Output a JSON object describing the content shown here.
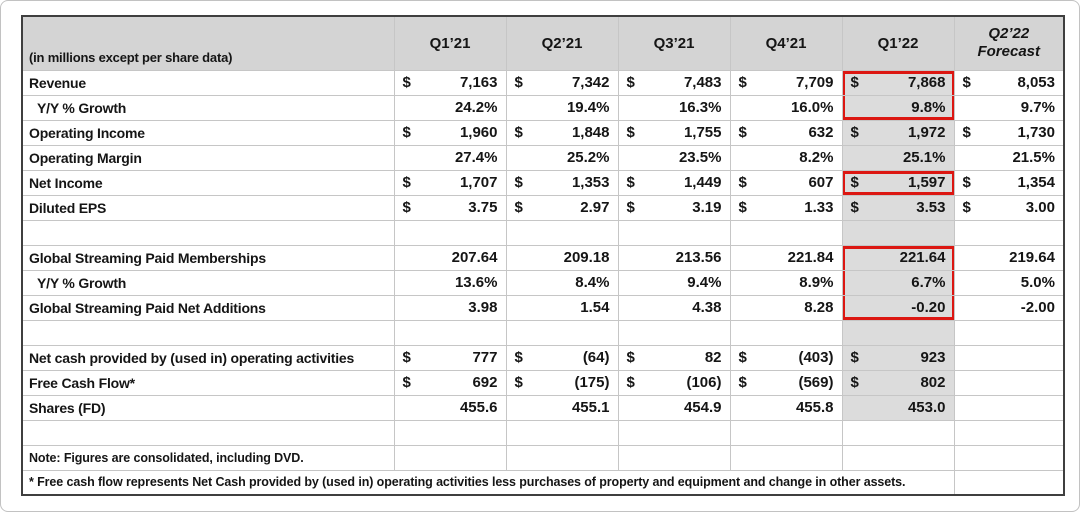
{
  "table": {
    "unit_note": "(in millions except per share data)",
    "columns": [
      "Q1’21",
      "Q2’21",
      "Q3’21",
      "Q4’21",
      "Q1’22"
    ],
    "forecast_header": {
      "line1": "Q2’22",
      "line2": "Forecast"
    },
    "highlight_column": "Q1'22",
    "colors": {
      "header_bg": "#d4d4d4",
      "column_shade": "#dcdcdc",
      "highlight_box": "#dc1712",
      "gridline": "#c6c6c6",
      "outer_border": "#3f3f3f"
    },
    "rows": [
      {
        "label": "Revenue",
        "dollar": true,
        "box": "top",
        "cells": [
          "7,163",
          "7,342",
          "7,483",
          "7,709",
          "7,868",
          "8,053"
        ]
      },
      {
        "label": "Y/Y % Growth",
        "indent": true,
        "box": "bottom",
        "cells": [
          "24.2%",
          "19.4%",
          "16.3%",
          "16.0%",
          "9.8%",
          "9.7%"
        ]
      },
      {
        "label": "Operating Income",
        "dollar": true,
        "cells": [
          "1,960",
          "1,848",
          "1,755",
          "632",
          "1,972",
          "1,730"
        ]
      },
      {
        "label": "Operating Margin",
        "cells": [
          "27.4%",
          "25.2%",
          "23.5%",
          "8.2%",
          "25.1%",
          "21.5%"
        ]
      },
      {
        "label": "Net Income",
        "dollar": true,
        "box": "single",
        "cells": [
          "1,707",
          "1,353",
          "1,449",
          "607",
          "1,597",
          "1,354"
        ]
      },
      {
        "label": "Diluted EPS",
        "dollar": true,
        "cells": [
          "3.75",
          "2.97",
          "3.19",
          "1.33",
          "3.53",
          "3.00"
        ]
      },
      {
        "blank": true
      },
      {
        "label": "Global Streaming Paid Memberships",
        "box": "top",
        "cells": [
          "207.64",
          "209.18",
          "213.56",
          "221.84",
          "221.64",
          "219.64"
        ]
      },
      {
        "label": "Y/Y % Growth",
        "indent": true,
        "box": "mid",
        "cells": [
          "13.6%",
          "8.4%",
          "9.4%",
          "8.9%",
          "6.7%",
          "5.0%"
        ]
      },
      {
        "label": "Global Streaming Paid Net Additions",
        "box": "bottom",
        "cells": [
          "3.98",
          "1.54",
          "4.38",
          "8.28",
          "-0.20",
          "-2.00"
        ]
      },
      {
        "blank": true
      },
      {
        "label": "Net cash provided by (used in) operating activities",
        "dollar": true,
        "cells": [
          "777",
          "(64)",
          "82",
          "(403)",
          "923",
          ""
        ]
      },
      {
        "label": "Free Cash Flow*",
        "dollar": true,
        "cells": [
          "692",
          "(175)",
          "(106)",
          "(569)",
          "802",
          ""
        ]
      },
      {
        "label": "Shares (FD)",
        "cells": [
          "455.6",
          "455.1",
          "454.9",
          "455.8",
          "453.0",
          ""
        ]
      },
      {
        "blank": true,
        "shade": false
      }
    ]
  },
  "notes": {
    "consolidated": "Note: Figures are consolidated, including DVD.",
    "fcf_definition": "* Free cash flow represents Net Cash provided by (used in) operating activities less purchases of property and equipment and change in other assets."
  }
}
